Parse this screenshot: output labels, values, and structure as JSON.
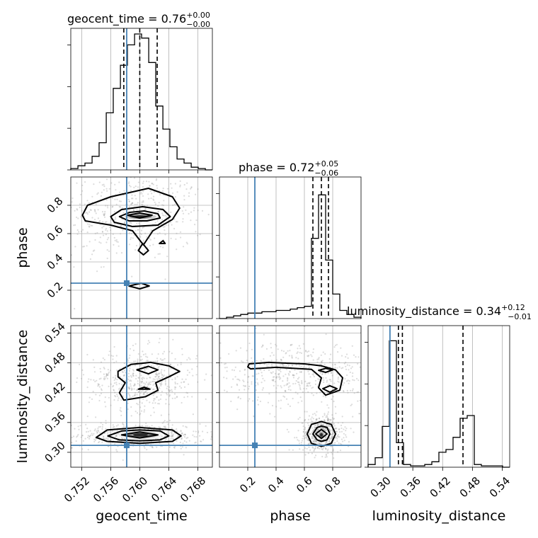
{
  "parameters": [
    "geocent_time",
    "phase",
    "luminosity_distance"
  ],
  "titles": [
    {
      "name": "geocent_time",
      "value": "0.76",
      "plus": "+0.00",
      "minus": "−0.00"
    },
    {
      "name": "phase",
      "value": "0.72",
      "plus": "+0.05",
      "minus": "−0.06"
    },
    {
      "name": "luminosity_distance",
      "value": "0.34",
      "plus": "+0.12",
      "minus": "−0.01"
    }
  ],
  "colors": {
    "truth": "#4682b4",
    "line": "#000000",
    "grid": "#b0b0b0",
    "samples": "#9a9a9a"
  },
  "chart_data": {
    "type": "corner",
    "grid": true,
    "truths": {
      "geocent_time": 0.7582,
      "phase": 0.25,
      "luminosity_distance": 0.314
    },
    "axes": {
      "geocent_time": {
        "label": "geocent_time",
        "range": [
          0.7505,
          0.77
        ],
        "ticks": [
          0.752,
          0.756,
          0.76,
          0.764,
          0.768
        ],
        "tick_labels": [
          "0.752",
          "0.756",
          "0.760",
          "0.764",
          "0.768"
        ]
      },
      "phase": {
        "label": "phase",
        "range": [
          0.0,
          1.0
        ],
        "ticks": [
          0.2,
          0.4,
          0.6,
          0.8
        ],
        "tick_labels": [
          "0.2",
          "0.4",
          "0.6",
          "0.8"
        ]
      },
      "luminosity_distance": {
        "label": "luminosity_distance",
        "range": [
          0.27,
          0.555
        ],
        "ticks": [
          0.3,
          0.36,
          0.42,
          0.48,
          0.54
        ],
        "tick_labels": [
          "0.30",
          "0.36",
          "0.42",
          "0.48",
          "0.54"
        ]
      }
    },
    "histograms": {
      "geocent_time": {
        "edges": [
          0.7505,
          0.75148,
          0.75245,
          0.75343,
          0.7544,
          0.75538,
          0.75635,
          0.75733,
          0.7583,
          0.75928,
          0.76025,
          0.76123,
          0.7622,
          0.76318,
          0.76415,
          0.76513,
          0.7661,
          0.76708,
          0.76805,
          0.76903,
          0.77
        ],
        "counts": [
          0.01,
          0.03,
          0.05,
          0.1,
          0.2,
          0.42,
          0.6,
          0.77,
          0.92,
          1.0,
          0.97,
          0.79,
          0.47,
          0.3,
          0.17,
          0.08,
          0.05,
          0.02,
          0.01,
          0.0
        ],
        "quantiles": [
          0.7578,
          0.76,
          0.7624
        ]
      },
      "phase": {
        "edges": [
          0.0,
          0.05,
          0.1,
          0.15,
          0.2,
          0.25,
          0.3,
          0.35,
          0.4,
          0.45,
          0.5,
          0.55,
          0.6,
          0.65,
          0.7,
          0.75,
          0.8,
          0.85,
          0.9,
          0.95,
          1.0
        ],
        "counts": [
          0.0,
          0.01,
          0.02,
          0.03,
          0.04,
          0.04,
          0.05,
          0.05,
          0.06,
          0.06,
          0.07,
          0.08,
          0.09,
          0.59,
          0.91,
          0.43,
          0.18,
          0.06,
          0.03,
          0.01
        ],
        "quantiles": [
          0.66,
          0.72,
          0.77
        ]
      },
      "luminosity_distance": {
        "edges": [
          0.27,
          0.2843,
          0.2985,
          0.3128,
          0.327,
          0.3413,
          0.3555,
          0.3698,
          0.384,
          0.3983,
          0.4125,
          0.4268,
          0.441,
          0.4553,
          0.4695,
          0.4838,
          0.498,
          0.5123,
          0.5265,
          0.5408,
          0.555
        ],
        "counts": [
          0.02,
          0.07,
          0.3,
          0.93,
          0.18,
          0.02,
          0.01,
          0.01,
          0.02,
          0.04,
          0.11,
          0.13,
          0.22,
          0.36,
          0.38,
          0.02,
          0.01,
          0.01,
          0.01,
          0.0
        ],
        "quantiles": [
          0.331,
          0.339,
          0.461
        ]
      }
    },
    "density_2d": [
      {
        "x": "geocent_time",
        "y": "phase",
        "modes": [
          {
            "cx": 0.7601,
            "cy": 0.72,
            "level_box": [
              0.7573,
              0.7628,
              0.695,
              0.745
            ]
          }
        ],
        "contours": [
          [
            [
              0.7521,
              0.73
            ],
            [
              0.7528,
              0.8
            ],
            [
              0.756,
              0.86
            ],
            [
              0.7612,
              0.92
            ],
            [
              0.7645,
              0.86
            ],
            [
              0.7655,
              0.78
            ],
            [
              0.7645,
              0.7
            ],
            [
              0.7618,
              0.62
            ],
            [
              0.7605,
              0.52
            ],
            [
              0.759,
              0.62
            ],
            [
              0.756,
              0.66
            ],
            [
              0.7525,
              0.69
            ]
          ],
          [
            [
              0.756,
              0.72
            ],
            [
              0.7575,
              0.77
            ],
            [
              0.7604,
              0.79
            ],
            [
              0.7632,
              0.77
            ],
            [
              0.7642,
              0.72
            ],
            [
              0.7625,
              0.66
            ],
            [
              0.759,
              0.65
            ],
            [
              0.7565,
              0.68
            ]
          ],
          [
            [
              0.7572,
              0.72
            ],
            [
              0.7586,
              0.75
            ],
            [
              0.7606,
              0.76
            ],
            [
              0.7625,
              0.74
            ],
            [
              0.7628,
              0.71
            ],
            [
              0.761,
              0.69
            ],
            [
              0.7585,
              0.69
            ]
          ],
          [
            [
              0.7583,
              0.73
            ],
            [
              0.76,
              0.745
            ],
            [
              0.7617,
              0.73
            ],
            [
              0.76,
              0.71
            ]
          ],
          [
            [
              0.7598,
              0.48
            ],
            [
              0.7604,
              0.53
            ],
            [
              0.7612,
              0.48
            ],
            [
              0.7605,
              0.45
            ]
          ],
          [
            [
              0.7627,
              0.53
            ],
            [
              0.7632,
              0.55
            ],
            [
              0.7635,
              0.53
            ]
          ],
          [
            [
              0.7585,
              0.23
            ],
            [
              0.7602,
              0.25
            ],
            [
              0.7613,
              0.23
            ],
            [
              0.76,
              0.21
            ]
          ]
        ]
      },
      {
        "x": "geocent_time",
        "y": "luminosity_distance",
        "modes": [
          {
            "cx": 0.7601,
            "cy": 0.335,
            "level_box": [
              0.757,
              0.763,
              0.325,
              0.345
            ]
          }
        ],
        "contours": [
          [
            [
              0.754,
              0.33
            ],
            [
              0.7555,
              0.345
            ],
            [
              0.76,
              0.35
            ],
            [
              0.7645,
              0.345
            ],
            [
              0.7657,
              0.333
            ],
            [
              0.7645,
              0.322
            ],
            [
              0.76,
              0.318
            ],
            [
              0.7555,
              0.322
            ]
          ],
          [
            [
              0.7556,
              0.333
            ],
            [
              0.7575,
              0.343
            ],
            [
              0.76,
              0.345
            ],
            [
              0.7628,
              0.343
            ],
            [
              0.764,
              0.333
            ],
            [
              0.7628,
              0.325
            ],
            [
              0.76,
              0.323
            ],
            [
              0.7572,
              0.325
            ]
          ],
          [
            [
              0.7575,
              0.335
            ],
            [
              0.76,
              0.341
            ],
            [
              0.7625,
              0.335
            ],
            [
              0.76,
              0.329
            ]
          ],
          [
            [
              0.757,
              0.463
            ],
            [
              0.7588,
              0.477
            ],
            [
              0.7615,
              0.481
            ],
            [
              0.764,
              0.474
            ],
            [
              0.7655,
              0.463
            ],
            [
              0.764,
              0.452
            ],
            [
              0.7622,
              0.44
            ],
            [
              0.7625,
              0.425
            ],
            [
              0.7608,
              0.412
            ],
            [
              0.7578,
              0.405
            ],
            [
              0.7572,
              0.42
            ],
            [
              0.758,
              0.44
            ],
            [
              0.757,
              0.452
            ]
          ],
          [
            [
              0.7596,
              0.466
            ],
            [
              0.7612,
              0.473
            ],
            [
              0.7625,
              0.466
            ],
            [
              0.7612,
              0.458
            ]
          ],
          [
            [
              0.7598,
              0.427
            ],
            [
              0.7606,
              0.431
            ],
            [
              0.7614,
              0.427
            ]
          ]
        ]
      },
      {
        "x": "phase",
        "y": "luminosity_distance",
        "modes": [
          {
            "cx": 0.72,
            "cy": 0.335,
            "level_box": [
              0.69,
              0.75,
              0.325,
              0.345
            ]
          }
        ],
        "contours": [
          [
            [
              0.2,
              0.472
            ],
            [
              0.21,
              0.478
            ],
            [
              0.35,
              0.481
            ],
            [
              0.6,
              0.478
            ],
            [
              0.72,
              0.474
            ],
            [
              0.82,
              0.466
            ],
            [
              0.87,
              0.45
            ],
            [
              0.85,
              0.425
            ],
            [
              0.75,
              0.415
            ],
            [
              0.7,
              0.43
            ],
            [
              0.72,
              0.45
            ],
            [
              0.65,
              0.467
            ],
            [
              0.4,
              0.471
            ],
            [
              0.22,
              0.468
            ]
          ],
          [
            [
              0.7,
              0.465
            ],
            [
              0.75,
              0.469
            ],
            [
              0.8,
              0.466
            ],
            [
              0.75,
              0.461
            ]
          ],
          [
            [
              0.73,
              0.428
            ],
            [
              0.78,
              0.434
            ],
            [
              0.83,
              0.428
            ],
            [
              0.78,
              0.421
            ]
          ],
          [
            [
              0.62,
              0.337
            ],
            [
              0.65,
              0.356
            ],
            [
              0.72,
              0.362
            ],
            [
              0.79,
              0.356
            ],
            [
              0.82,
              0.337
            ],
            [
              0.79,
              0.318
            ],
            [
              0.72,
              0.312
            ],
            [
              0.65,
              0.318
            ]
          ],
          [
            [
              0.66,
              0.337
            ],
            [
              0.69,
              0.35
            ],
            [
              0.72,
              0.353
            ],
            [
              0.76,
              0.35
            ],
            [
              0.78,
              0.337
            ],
            [
              0.76,
              0.325
            ],
            [
              0.72,
              0.322
            ],
            [
              0.69,
              0.325
            ]
          ],
          [
            [
              0.68,
              0.337
            ],
            [
              0.72,
              0.346
            ],
            [
              0.76,
              0.337
            ],
            [
              0.72,
              0.328
            ]
          ]
        ]
      }
    ]
  }
}
